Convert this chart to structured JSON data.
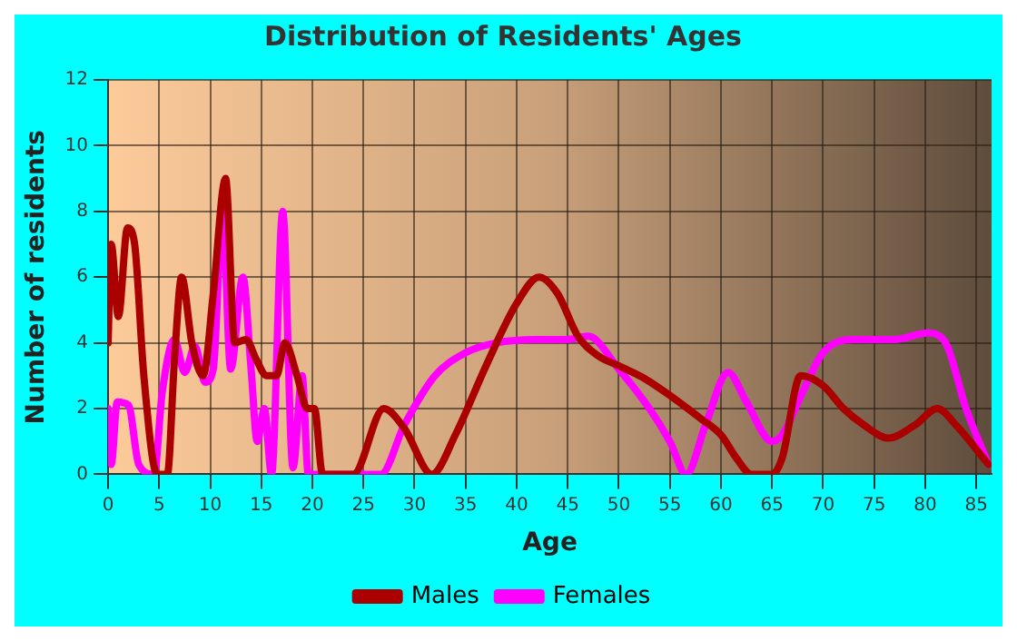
{
  "chart_data": {
    "type": "line",
    "title": "Distribution of Residents' Ages",
    "xlabel": "Age",
    "ylabel": "Number of residents",
    "xlim": [
      0,
      86.5
    ],
    "xticks": [
      0,
      5,
      10,
      15,
      20,
      25,
      30,
      35,
      40,
      45,
      50,
      55,
      60,
      65,
      70,
      75,
      80,
      85
    ],
    "ylim": [
      0,
      12
    ],
    "yticks": [
      0,
      2,
      4,
      6,
      8,
      10,
      12
    ],
    "grid": true,
    "legend": "bottom",
    "marker": "none",
    "line_style": "solid",
    "series": [
      {
        "name": "Males",
        "color": "#aa0000",
        "x": [
          0,
          0.3,
          1,
          1.9,
          2.6,
          3.5,
          4.8,
          5.8,
          6.5,
          7.2,
          8.2,
          9.3,
          10.3,
          11.5,
          12.4,
          13.5,
          14.5,
          15.5,
          16.5,
          17.3,
          18.5,
          19.5,
          20.2,
          21,
          24,
          27,
          29,
          31.7,
          34,
          37,
          40,
          42.2,
          44,
          46,
          48,
          50,
          52.6,
          55,
          58,
          60,
          61.5,
          63,
          65,
          66,
          67.8,
          70,
          72,
          74,
          76.4,
          79,
          81.2,
          83,
          86.2
        ],
        "values": [
          4,
          7,
          4.8,
          7.5,
          7,
          3,
          0,
          0,
          3.5,
          6,
          4,
          3,
          5.5,
          9,
          4,
          4.1,
          3.5,
          3,
          3,
          4,
          3,
          2,
          2,
          0,
          0,
          2,
          1.4,
          0,
          1.2,
          3.3,
          5.2,
          6,
          5.5,
          4.2,
          3.6,
          3.3,
          2.9,
          2.4,
          1.7,
          1.2,
          0.5,
          0,
          0,
          0.5,
          3,
          2.7,
          2,
          1.5,
          1.1,
          1.5,
          2,
          1.5,
          0.3
        ]
      },
      {
        "name": "Females",
        "color": "#ff00ff",
        "x": [
          0,
          0.3,
          0.9,
          2,
          3,
          4.5,
          5.3,
          6.5,
          7.5,
          8.5,
          9.5,
          10.3,
          11.2,
          12,
          13.2,
          14,
          14.6,
          15.3,
          16,
          17.1,
          18.1,
          19,
          19.6,
          21,
          26.7,
          29,
          32,
          35,
          38,
          42,
          45,
          47,
          50,
          53,
          55,
          56.6,
          58.5,
          60.7,
          62.5,
          65,
          66,
          68,
          70,
          73,
          77,
          80.2,
          82,
          84,
          86.2
        ],
        "values": [
          2,
          0.3,
          2.2,
          2.1,
          0.3,
          0,
          2.5,
          4.1,
          3.1,
          3.9,
          2.8,
          3.2,
          8,
          3.2,
          6,
          3.2,
          1,
          2,
          0,
          8,
          0.2,
          3,
          0,
          0,
          0,
          1.5,
          3,
          3.7,
          4,
          4.1,
          4.1,
          4.2,
          3.2,
          2,
          1,
          0,
          1.5,
          3.1,
          2.2,
          1,
          1.2,
          2.5,
          3.7,
          4.1,
          4.1,
          4.3,
          4,
          2,
          0.3
        ]
      }
    ]
  }
}
